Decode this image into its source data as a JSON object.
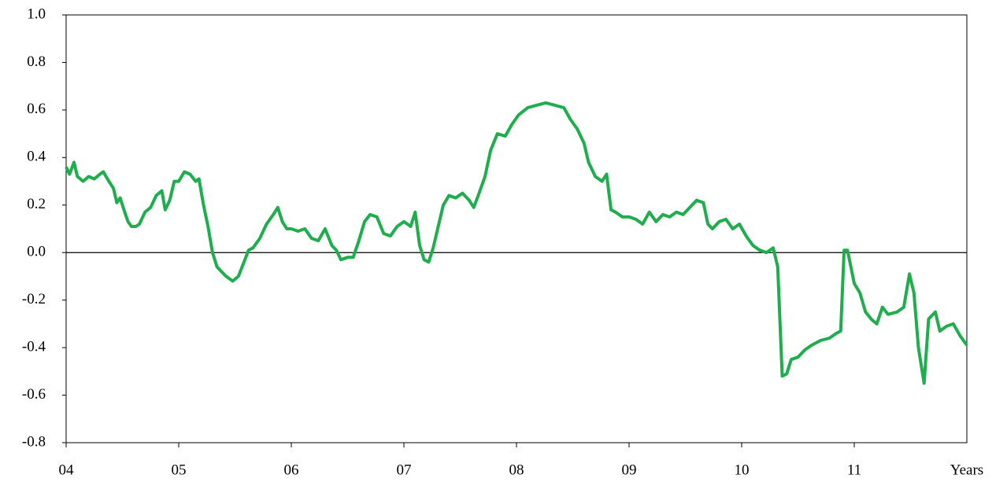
{
  "chart_data": {
    "type": "line",
    "x_label": "Years",
    "xlim": [
      4,
      12
    ],
    "xticks": [
      {
        "value": 4,
        "label": "04"
      },
      {
        "value": 5,
        "label": "05"
      },
      {
        "value": 6,
        "label": "06"
      },
      {
        "value": 7,
        "label": "07"
      },
      {
        "value": 8,
        "label": "08"
      },
      {
        "value": 9,
        "label": "09"
      },
      {
        "value": 10,
        "label": "10"
      },
      {
        "value": 11,
        "label": "11"
      }
    ],
    "ylim": [
      -0.8,
      1.0
    ],
    "yticks": [
      -0.8,
      -0.6,
      -0.4,
      -0.2,
      {
        "value": 0,
        "label": "0.0"
      },
      0.2,
      0.4,
      0.6,
      0.8,
      {
        "value": 1.0,
        "label": "1.0"
      }
    ],
    "zero_line": true,
    "grid": false,
    "x": [
      4.0,
      4.03,
      4.07,
      4.1,
      4.15,
      4.2,
      4.25,
      4.3,
      4.33,
      4.38,
      4.42,
      4.45,
      4.48,
      4.52,
      4.55,
      4.58,
      4.62,
      4.65,
      4.7,
      4.75,
      4.8,
      4.85,
      4.88,
      4.92,
      4.96,
      5.0,
      5.05,
      5.1,
      5.15,
      5.18,
      5.22,
      5.26,
      5.3,
      5.34,
      5.38,
      5.42,
      5.48,
      5.53,
      5.58,
      5.62,
      5.66,
      5.72,
      5.78,
      5.84,
      5.88,
      5.92,
      5.96,
      6.0,
      6.06,
      6.12,
      6.18,
      6.24,
      6.3,
      6.36,
      6.4,
      6.44,
      6.5,
      6.55,
      6.6,
      6.65,
      6.7,
      6.76,
      6.82,
      6.88,
      6.94,
      7.0,
      7.06,
      7.1,
      7.14,
      7.18,
      7.22,
      7.26,
      7.3,
      7.35,
      7.4,
      7.46,
      7.52,
      7.58,
      7.62,
      7.66,
      7.72,
      7.77,
      7.83,
      7.9,
      7.96,
      8.02,
      8.1,
      8.18,
      8.26,
      8.34,
      8.42,
      8.48,
      8.54,
      8.6,
      8.64,
      8.7,
      8.76,
      8.8,
      8.84,
      8.88,
      8.94,
      9.0,
      9.06,
      9.12,
      9.18,
      9.24,
      9.3,
      9.36,
      9.42,
      9.48,
      9.54,
      9.6,
      9.66,
      9.7,
      9.74,
      9.8,
      9.86,
      9.92,
      9.98,
      10.04,
      10.1,
      10.16,
      10.22,
      10.28,
      10.32,
      10.36,
      10.4,
      10.44,
      10.5,
      10.56,
      10.62,
      10.7,
      10.78,
      10.84,
      10.88,
      10.91,
      10.94,
      11.0,
      11.05,
      11.1,
      11.15,
      11.2,
      11.25,
      11.3,
      11.38,
      11.44,
      11.49,
      11.53,
      11.57,
      11.62,
      11.66,
      11.72,
      11.76,
      11.82,
      11.88,
      11.94,
      12.0
    ],
    "series": [
      {
        "color": "#1fae4e",
        "values": [
          0.36,
          0.33,
          0.38,
          0.32,
          0.3,
          0.32,
          0.31,
          0.33,
          0.34,
          0.3,
          0.27,
          0.21,
          0.23,
          0.17,
          0.13,
          0.11,
          0.11,
          0.12,
          0.17,
          0.19,
          0.24,
          0.26,
          0.18,
          0.22,
          0.3,
          0.3,
          0.34,
          0.33,
          0.3,
          0.31,
          0.2,
          0.11,
          0.0,
          -0.06,
          -0.08,
          -0.1,
          -0.12,
          -0.1,
          -0.04,
          0.01,
          0.02,
          0.06,
          0.12,
          0.16,
          0.19,
          0.13,
          0.1,
          0.1,
          0.09,
          0.1,
          0.06,
          0.05,
          0.1,
          0.03,
          0.01,
          -0.03,
          -0.02,
          -0.02,
          0.05,
          0.13,
          0.16,
          0.15,
          0.08,
          0.07,
          0.11,
          0.13,
          0.11,
          0.17,
          0.03,
          -0.03,
          -0.04,
          0.02,
          0.1,
          0.2,
          0.24,
          0.23,
          0.25,
          0.22,
          0.19,
          0.24,
          0.32,
          0.43,
          0.5,
          0.49,
          0.54,
          0.58,
          0.61,
          0.62,
          0.63,
          0.62,
          0.61,
          0.56,
          0.52,
          0.46,
          0.38,
          0.32,
          0.3,
          0.33,
          0.18,
          0.17,
          0.15,
          0.15,
          0.14,
          0.12,
          0.17,
          0.13,
          0.16,
          0.15,
          0.17,
          0.16,
          0.19,
          0.22,
          0.21,
          0.12,
          0.1,
          0.13,
          0.14,
          0.1,
          0.12,
          0.07,
          0.03,
          0.01,
          0.0,
          0.02,
          -0.06,
          -0.52,
          -0.51,
          -0.45,
          -0.44,
          -0.41,
          -0.39,
          -0.37,
          -0.36,
          -0.34,
          -0.33,
          0.01,
          0.01,
          -0.13,
          -0.17,
          -0.25,
          -0.28,
          -0.3,
          -0.23,
          -0.26,
          -0.25,
          -0.23,
          -0.09,
          -0.17,
          -0.4,
          -0.55,
          -0.28,
          -0.25,
          -0.33,
          -0.31,
          -0.3,
          -0.35,
          -0.39
        ]
      }
    ]
  }
}
